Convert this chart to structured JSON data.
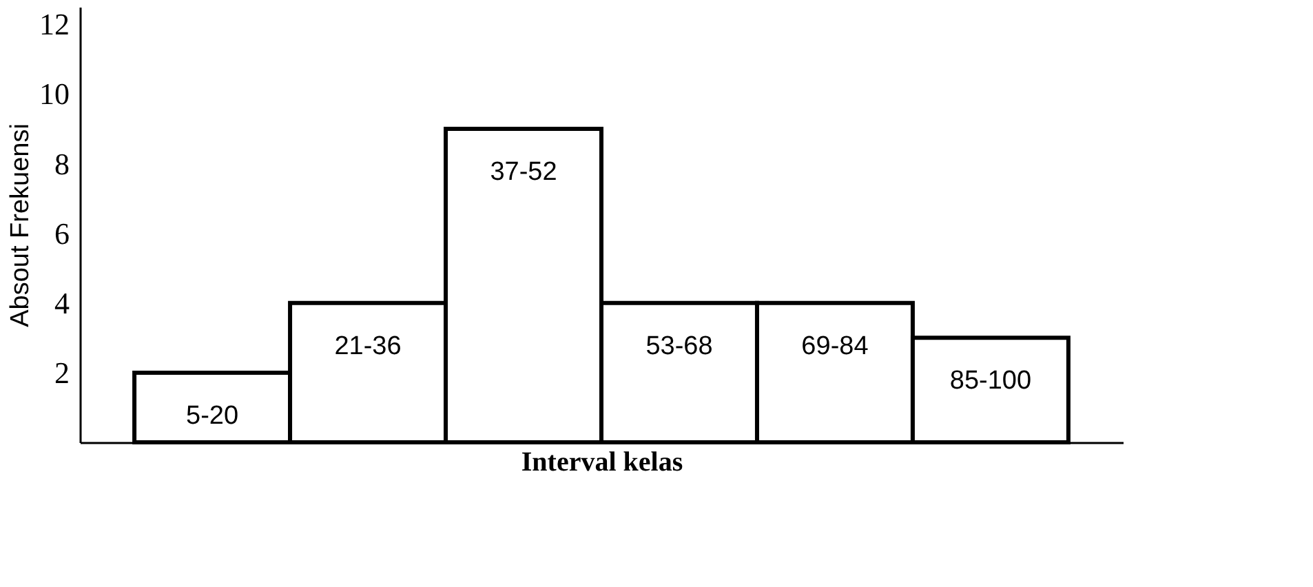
{
  "chart_data": {
    "type": "bar",
    "xlabel": "Interval kelas",
    "ylabel": "Absout Frekuensi",
    "categories": [
      "5-20",
      "21-36",
      "37-52",
      "53-68",
      "69-84",
      "85-100"
    ],
    "values": [
      2,
      4,
      9,
      4,
      4,
      3
    ],
    "color": "#ffffff",
    "ylim": [
      0,
      12.5
    ],
    "yticks": [
      2,
      4,
      6,
      8,
      10,
      12
    ],
    "grid": false
  }
}
